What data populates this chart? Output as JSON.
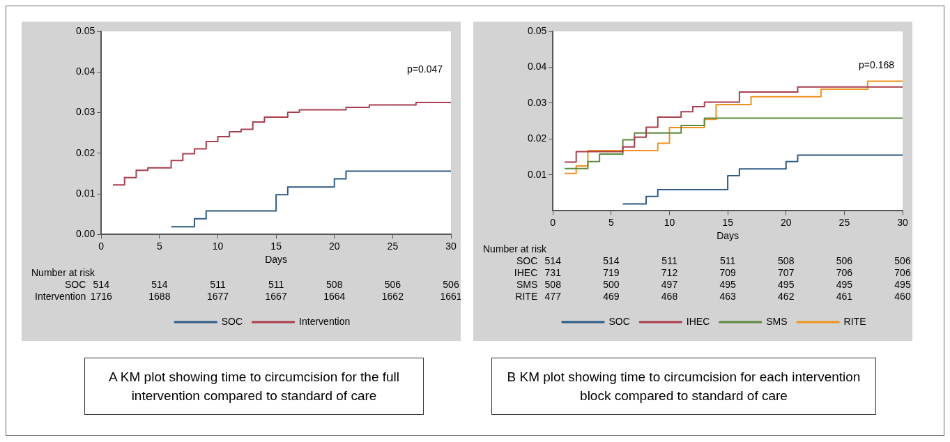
{
  "chart_data": [
    {
      "type": "step",
      "xlabel": "Days",
      "xlim": [
        0,
        30
      ],
      "xticks": [
        0,
        5,
        10,
        15,
        20,
        25,
        30
      ],
      "ylim": [
        0,
        0.05
      ],
      "yticks": [
        {
          "value": 0,
          "label": "0.00"
        },
        {
          "value": 0.01,
          "label": "0.01"
        },
        {
          "value": 0.02,
          "label": "0.02"
        },
        {
          "value": 0.03,
          "label": "0.03"
        },
        {
          "value": 0.04,
          "label": "0.04"
        },
        {
          "value": 0.05,
          "label": "0.05"
        }
      ],
      "grid": false,
      "legend": "bottom",
      "series": [
        {
          "name": "SOC",
          "color": "#2b5b86",
          "x": [
            6,
            8,
            9,
            15,
            16,
            20,
            21,
            30
          ],
          "values": [
            0.0019,
            0.0039,
            0.0058,
            0.0098,
            0.0117,
            0.0137,
            0.0156,
            0.0156
          ]
        },
        {
          "name": "Intervention",
          "color": "#aa3d4c",
          "x": [
            1,
            2,
            3,
            4,
            6,
            7,
            8,
            9,
            10,
            11,
            12,
            13,
            14,
            16,
            17,
            21,
            23,
            27,
            30
          ],
          "values": [
            0.0122,
            0.014,
            0.0158,
            0.0164,
            0.0182,
            0.0199,
            0.0211,
            0.0229,
            0.0241,
            0.0253,
            0.0259,
            0.0277,
            0.0289,
            0.0301,
            0.0307,
            0.0313,
            0.0319,
            0.0325,
            0.0325
          ]
        }
      ],
      "annotations": [
        "p=0.047",
        "Number at risk",
        "SOC 514 514 511 511 508 506 506",
        "Intervention 1716 1688 1677 1667 1664 1662 1661",
        "A KM plot showing time to circumcision for the full intervention compared to standard of care"
      ]
    },
    {
      "type": "step",
      "xlabel": "Days",
      "xlim": [
        0,
        30
      ],
      "xticks": [
        0,
        5,
        10,
        15,
        20,
        25,
        30
      ],
      "ylim": [
        0,
        0.05
      ],
      "yticks": [
        {
          "value": 0.01,
          "label": "0.01"
        },
        {
          "value": 0.02,
          "label": "0.02"
        },
        {
          "value": 0.03,
          "label": "0.03"
        },
        {
          "value": 0.04,
          "label": "0.04"
        },
        {
          "value": 0.05,
          "label": "0.05"
        }
      ],
      "grid": false,
      "legend": "bottom",
      "series": [
        {
          "name": "SOC",
          "color": "#2b5b86",
          "x": [
            6,
            8,
            9,
            15,
            16,
            20,
            21,
            30
          ],
          "values": [
            0.0019,
            0.004,
            0.0059,
            0.0098,
            0.0117,
            0.0137,
            0.0155,
            0.0155
          ]
        },
        {
          "name": "IHEC",
          "color": "#aa3d4c",
          "x": [
            1,
            2,
            6,
            7,
            8,
            9,
            11,
            12,
            13,
            16,
            21,
            30
          ],
          "values": [
            0.0136,
            0.0165,
            0.0178,
            0.0205,
            0.0233,
            0.0261,
            0.0276,
            0.029,
            0.0303,
            0.0331,
            0.0345,
            0.0345
          ]
        },
        {
          "name": "SMS",
          "color": "#5b8a3c",
          "x": [
            1,
            3,
            4,
            6,
            7,
            11,
            13,
            30
          ],
          "values": [
            0.0118,
            0.0137,
            0.0158,
            0.0198,
            0.0217,
            0.0238,
            0.0258,
            0.0258
          ]
        },
        {
          "name": "RITE",
          "color": "#f0921c",
          "x": [
            1,
            2,
            3,
            9,
            10,
            13,
            14,
            17,
            23,
            27,
            30
          ],
          "values": [
            0.0104,
            0.0125,
            0.0168,
            0.0188,
            0.0232,
            0.0255,
            0.0296,
            0.0318,
            0.0339,
            0.0361,
            0.0361
          ]
        }
      ],
      "annotations": [
        "p=0.168",
        "Number at risk",
        "SOC 514 514 511 511 508 506 506",
        "IHEC 731 719 712 709 707 706 706",
        "SMS 508 500 497 495 495 495 495",
        "RITE 477 469 468 463 462 461 460",
        "B KM plot showing time to circumcision for each intervention block compared to standard of care"
      ]
    }
  ]
}
